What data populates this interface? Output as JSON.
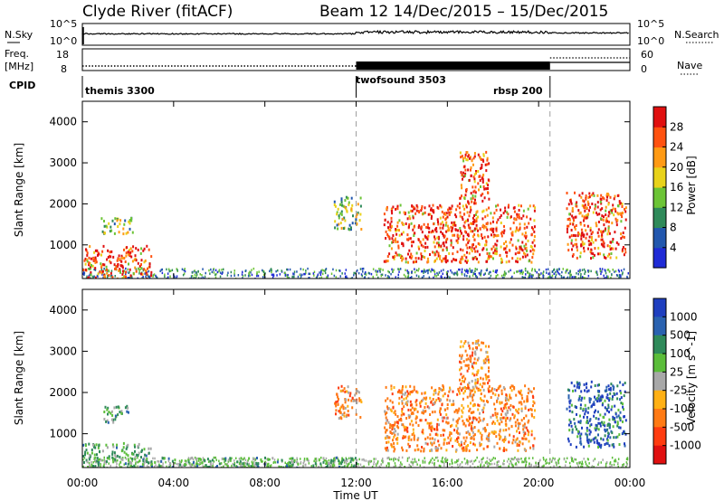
{
  "header": {
    "title": "Clyde River (fitACF)",
    "beam_date": "Beam 12  14/Dec/2015 – 15/Dec/2015"
  },
  "strip_nsky": {
    "left_label": "N.Sky",
    "right_label": "N.Search",
    "left_ticks": [
      "10^5",
      "10^0"
    ],
    "right_ticks": [
      "10^5",
      "10^0"
    ]
  },
  "strip_freq": {
    "left_label_1": "Freq.",
    "left_label_2": "[MHz]",
    "right_label": "Nave",
    "left_ticks": [
      "18",
      "8"
    ],
    "right_ticks": [
      "60",
      "0"
    ]
  },
  "cpid": {
    "label": "CPID",
    "modes": [
      {
        "name": "themis 3300",
        "start_h": 0
      },
      {
        "name": "twofsound 3503",
        "start_h": 12
      },
      {
        "name": "rbsp 200",
        "start_h": 20.5
      }
    ]
  },
  "time_axis": {
    "label": "Time UT",
    "ticks": [
      "00:00",
      "04:00",
      "08:00",
      "12:00",
      "16:00",
      "20:00",
      "00:00"
    ]
  },
  "chart_data": [
    {
      "type": "heatmap",
      "panel": "power",
      "ylabel": "Slant Range [km]",
      "x_range_hours": [
        0,
        24
      ],
      "ylim": [
        180,
        4500
      ],
      "yticks": [
        1000,
        2000,
        3000,
        4000
      ],
      "colorbar_label": "Power [dB]",
      "colorbar_ticks": [
        4,
        8,
        12,
        16,
        20,
        24,
        28
      ],
      "colors": [
        "#1f2bd6",
        "#2257ae",
        "#2f8a5a",
        "#6cc436",
        "#e8d21a",
        "#ff9a14",
        "#ff5210",
        "#e01010"
      ],
      "mode_boundaries_h": [
        12,
        20.5
      ],
      "regions": [
        {
          "t0": 0.0,
          "t1": 3.0,
          "r0": 200,
          "r1": 1000,
          "level": "high"
        },
        {
          "t0": 0.8,
          "t1": 2.2,
          "r0": 1300,
          "r1": 1700,
          "level": "medium"
        },
        {
          "t0": 11.0,
          "t1": 12.2,
          "r0": 1400,
          "r1": 2200,
          "level": "medium"
        },
        {
          "t0": 13.2,
          "t1": 19.8,
          "r0": 600,
          "r1": 2000,
          "level": "high"
        },
        {
          "t0": 16.5,
          "t1": 17.8,
          "r0": 2000,
          "r1": 3300,
          "level": "high"
        },
        {
          "t0": 21.2,
          "t1": 23.8,
          "r0": 700,
          "r1": 2300,
          "level": "high"
        }
      ]
    },
    {
      "type": "heatmap",
      "panel": "velocity",
      "ylabel": "Slant Range [km]",
      "x_range_hours": [
        0,
        24
      ],
      "ylim": [
        180,
        4500
      ],
      "yticks": [
        1000,
        2000,
        3000,
        4000
      ],
      "colorbar_label": "Velocity [m s^-1]",
      "colorbar_ticks": [
        1000,
        500,
        100,
        25,
        -25,
        -100,
        -500,
        -1000
      ],
      "colors": [
        "#1f3fbf",
        "#2a62b0",
        "#2f8a5a",
        "#5bbd3a",
        "#a8a8a8",
        "#ffb014",
        "#ff7a14",
        "#ff3c10",
        "#e01010"
      ],
      "mode_boundaries_h": [
        12,
        20.5
      ],
      "regions": [
        {
          "t0": 0.0,
          "t1": 3.0,
          "r0": 200,
          "r1": 800,
          "level": "slow"
        },
        {
          "t0": 0.8,
          "t1": 2.0,
          "r0": 1300,
          "r1": 1700,
          "level": "slow"
        },
        {
          "t0": 3.0,
          "t1": 12.0,
          "r0": 200,
          "r1": 450,
          "level": "slow"
        },
        {
          "t0": 11.0,
          "t1": 12.2,
          "r0": 1400,
          "r1": 2200,
          "level": "away"
        },
        {
          "t0": 13.2,
          "t1": 19.8,
          "r0": 600,
          "r1": 2200,
          "level": "away"
        },
        {
          "t0": 16.5,
          "t1": 17.8,
          "r0": 2000,
          "r1": 3300,
          "level": "away"
        },
        {
          "t0": 21.2,
          "t1": 23.8,
          "r0": 700,
          "r1": 2300,
          "level": "toward"
        }
      ]
    }
  ]
}
